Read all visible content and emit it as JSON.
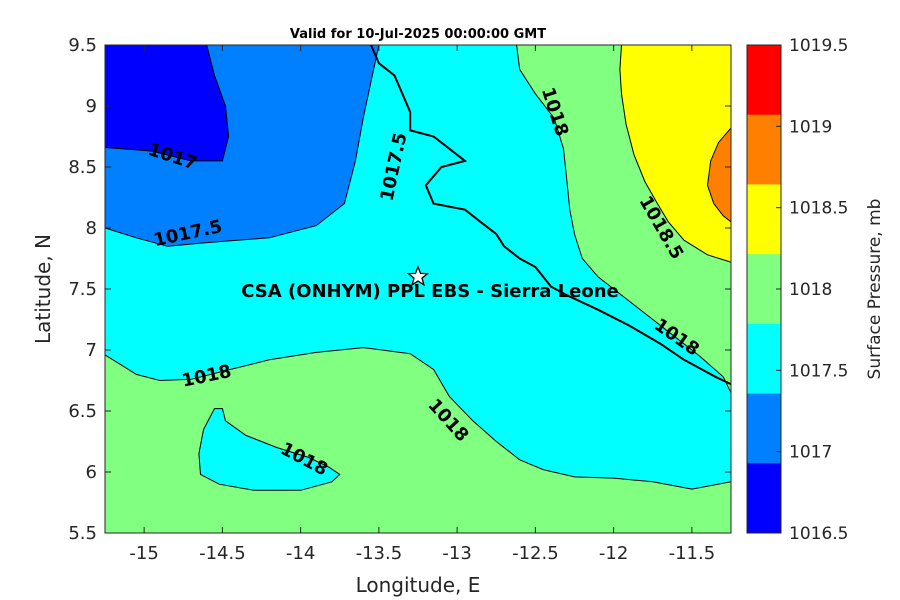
{
  "title": "Valid for 10-Jul-2025 00:00:00 GMT",
  "xlabel": "Longitude, E",
  "ylabel": "Latitude, N",
  "colorbar_label": "Surface Pressure, mb",
  "site_label": "CSA (ONHYM) PPL EBS  - Sierra Leone",
  "site_marker": {
    "lon": -13.25,
    "lat": 7.6
  },
  "xticks": [
    "-15",
    "-14.5",
    "-14",
    "-13.5",
    "-13",
    "-12.5",
    "-12",
    "-11.5"
  ],
  "yticks": [
    "9.5",
    "9",
    "8.5",
    "8",
    "7.5",
    "7",
    "6.5",
    "6",
    "5.5"
  ],
  "colorbar": {
    "levels": [
      "1019.5",
      "1019",
      "1018.5",
      "1018",
      "1017.5",
      "1017",
      "1016.5"
    ],
    "colors": [
      "#ff0000",
      "#ff8000",
      "#ffff00",
      "#80ff80",
      "#00ffff",
      "#0080ff",
      "#0000ff"
    ]
  },
  "contour_labels": [
    {
      "text": "1017",
      "lon": -14.82,
      "lat": 8.58,
      "angle": 18
    },
    {
      "text": "1017.5",
      "lon": -14.72,
      "lat": 7.95,
      "angle": -12
    },
    {
      "text": "1017.5",
      "lon": -13.4,
      "lat": 8.5,
      "angle": -78
    },
    {
      "text": "1018",
      "lon": -12.38,
      "lat": 8.95,
      "angle": 72
    },
    {
      "text": "1018.5",
      "lon": -11.7,
      "lat": 8.0,
      "angle": 60
    },
    {
      "text": "1018",
      "lon": -11.6,
      "lat": 7.1,
      "angle": 35
    },
    {
      "text": "1018",
      "lon": -14.6,
      "lat": 6.78,
      "angle": -12
    },
    {
      "text": "1018",
      "lon": -13.06,
      "lat": 6.42,
      "angle": 48
    },
    {
      "text": "1018",
      "lon": -13.98,
      "lat": 6.1,
      "angle": 28
    }
  ],
  "chart_data": {
    "type": "heatmap",
    "variable": "Surface Pressure, mb",
    "xlim": [
      -15.25,
      -11.25
    ],
    "ylim": [
      5.5,
      9.5
    ],
    "contour_levels": [
      1016.5,
      1017,
      1017.5,
      1018,
      1018.5,
      1019,
      1019.5
    ],
    "colormap": [
      {
        "range": [
          1016.5,
          1017
        ],
        "color": "#0000ff"
      },
      {
        "range": [
          1017,
          1017.5
        ],
        "color": "#0080ff"
      },
      {
        "range": [
          1017.5,
          1018
        ],
        "color": "#00ffff"
      },
      {
        "range": [
          1018,
          1018.5
        ],
        "color": "#80ff80"
      },
      {
        "range": [
          1018.5,
          1019
        ],
        "color": "#ffff00"
      },
      {
        "range": [
          1019,
          1019.5
        ],
        "color": "#ff8000"
      },
      {
        "range": [
          1019.5,
          1020
        ],
        "color": "#ff0000"
      }
    ],
    "regions": [
      {
        "band": "1017.5-1018",
        "color": "#00ffff",
        "polygon": [
          [
            -15.25,
            9.5
          ],
          [
            -11.25,
            9.5
          ],
          [
            -11.25,
            5.5
          ],
          [
            -15.25,
            5.5
          ]
        ]
      },
      {
        "band": "1017-1017.5",
        "color": "#0080ff",
        "polygon": [
          [
            -15.25,
            9.5
          ],
          [
            -13.5,
            9.5
          ],
          [
            -13.55,
            9.2
          ],
          [
            -13.6,
            8.9
          ],
          [
            -13.65,
            8.55
          ],
          [
            -13.72,
            8.2
          ],
          [
            -13.9,
            8.02
          ],
          [
            -14.2,
            7.92
          ],
          [
            -14.6,
            7.88
          ],
          [
            -14.85,
            7.85
          ],
          [
            -15.05,
            7.92
          ],
          [
            -15.25,
            8.0
          ]
        ]
      },
      {
        "band": "1016.5-1017",
        "color": "#0000ff",
        "polygon": [
          [
            -15.25,
            9.5
          ],
          [
            -14.6,
            9.5
          ],
          [
            -14.55,
            9.25
          ],
          [
            -14.48,
            9.0
          ],
          [
            -14.46,
            8.75
          ],
          [
            -14.5,
            8.55
          ],
          [
            -14.7,
            8.55
          ],
          [
            -14.95,
            8.63
          ],
          [
            -15.25,
            8.66
          ]
        ]
      },
      {
        "band": "1018-1018.5",
        "color": "#80ff80",
        "polygon": [
          [
            -15.25,
            6.96
          ],
          [
            -15.15,
            6.88
          ],
          [
            -15.05,
            6.8
          ],
          [
            -14.9,
            6.75
          ],
          [
            -14.7,
            6.76
          ],
          [
            -14.45,
            6.84
          ],
          [
            -14.2,
            6.92
          ],
          [
            -13.9,
            6.98
          ],
          [
            -13.6,
            7.02
          ],
          [
            -13.3,
            6.97
          ],
          [
            -13.15,
            6.84
          ],
          [
            -13.05,
            6.62
          ],
          [
            -12.9,
            6.42
          ],
          [
            -12.75,
            6.25
          ],
          [
            -12.6,
            6.1
          ],
          [
            -12.45,
            6.02
          ],
          [
            -12.25,
            5.96
          ],
          [
            -12.0,
            5.95
          ],
          [
            -11.75,
            5.92
          ],
          [
            -11.5,
            5.86
          ],
          [
            -11.25,
            5.92
          ],
          [
            -11.25,
            5.5
          ],
          [
            -15.25,
            5.5
          ]
        ]
      },
      {
        "band": "1017.5-1018",
        "color": "#00ffff",
        "polygon": [
          [
            -14.55,
            6.52
          ],
          [
            -14.62,
            6.35
          ],
          [
            -14.65,
            6.15
          ],
          [
            -14.64,
            5.98
          ],
          [
            -14.52,
            5.9
          ],
          [
            -14.3,
            5.85
          ],
          [
            -14.0,
            5.85
          ],
          [
            -13.8,
            5.92
          ],
          [
            -13.75,
            5.98
          ],
          [
            -13.82,
            6.04
          ],
          [
            -13.95,
            6.12
          ],
          [
            -14.15,
            6.2
          ],
          [
            -14.35,
            6.3
          ],
          [
            -14.48,
            6.42
          ],
          [
            -14.5,
            6.52
          ]
        ]
      },
      {
        "band": "1018-1018.5",
        "color": "#80ff80",
        "polygon": [
          [
            -12.6,
            9.5
          ],
          [
            -11.25,
            9.5
          ],
          [
            -11.25,
            6.65
          ],
          [
            -11.3,
            6.78
          ],
          [
            -11.45,
            6.95
          ],
          [
            -11.6,
            7.1
          ],
          [
            -11.75,
            7.25
          ],
          [
            -11.95,
            7.45
          ],
          [
            -12.1,
            7.6
          ],
          [
            -12.2,
            7.75
          ],
          [
            -12.25,
            7.95
          ],
          [
            -12.28,
            8.15
          ],
          [
            -12.3,
            8.4
          ],
          [
            -12.32,
            8.65
          ],
          [
            -12.38,
            8.9
          ],
          [
            -12.5,
            9.1
          ],
          [
            -12.6,
            9.3
          ],
          [
            -12.62,
            9.5
          ]
        ]
      },
      {
        "band": "1018.5-1019",
        "color": "#ffff00",
        "polygon": [
          [
            -11.95,
            9.5
          ],
          [
            -11.25,
            9.5
          ],
          [
            -11.25,
            7.72
          ],
          [
            -11.4,
            7.78
          ],
          [
            -11.55,
            7.9
          ],
          [
            -11.65,
            8.05
          ],
          [
            -11.72,
            8.2
          ],
          [
            -11.8,
            8.38
          ],
          [
            -11.87,
            8.6
          ],
          [
            -11.92,
            8.85
          ],
          [
            -11.95,
            9.1
          ],
          [
            -11.96,
            9.3
          ]
        ]
      },
      {
        "band": "1019-1019.5",
        "color": "#ff8000",
        "polygon": [
          [
            -11.25,
            8.82
          ],
          [
            -11.33,
            8.7
          ],
          [
            -11.38,
            8.55
          ],
          [
            -11.4,
            8.35
          ],
          [
            -11.36,
            8.2
          ],
          [
            -11.3,
            8.1
          ],
          [
            -11.25,
            8.05
          ]
        ]
      }
    ],
    "site": {
      "name": "CSA (ONHYM) PPL EBS  - Sierra Leone",
      "lon": -13.25,
      "lat": 7.6
    },
    "coastline": [
      [
        -13.55,
        9.5
      ],
      [
        -13.5,
        9.35
      ],
      [
        -13.4,
        9.25
      ],
      [
        -13.35,
        9.1
      ],
      [
        -13.3,
        8.95
      ],
      [
        -13.3,
        8.8
      ],
      [
        -13.15,
        8.75
      ],
      [
        -13.05,
        8.65
      ],
      [
        -12.95,
        8.55
      ],
      [
        -13.1,
        8.5
      ],
      [
        -13.2,
        8.35
      ],
      [
        -13.15,
        8.2
      ],
      [
        -12.95,
        8.15
      ],
      [
        -12.85,
        8.05
      ],
      [
        -12.75,
        7.95
      ],
      [
        -12.7,
        7.85
      ],
      [
        -12.6,
        7.75
      ],
      [
        -12.5,
        7.68
      ],
      [
        -12.45,
        7.6
      ],
      [
        -12.4,
        7.52
      ],
      [
        -12.3,
        7.45
      ],
      [
        -12.1,
        7.33
      ],
      [
        -11.9,
        7.2
      ],
      [
        -11.7,
        7.05
      ],
      [
        -11.55,
        6.92
      ],
      [
        -11.45,
        6.85
      ],
      [
        -11.35,
        6.78
      ],
      [
        -11.25,
        6.72
      ]
    ]
  }
}
